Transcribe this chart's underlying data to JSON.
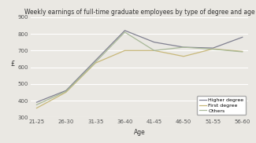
{
  "title": "Weekly earnings of full-time graduate employees by type of degree and age",
  "xlabel": "Age",
  "ylabel": "£",
  "age_groups": [
    "21-25",
    "26-30",
    "31-35",
    "36-40",
    "41-45",
    "46-50",
    "51-55",
    "56-60"
  ],
  "higher_degree": [
    390,
    460,
    640,
    820,
    750,
    720,
    715,
    780
  ],
  "first_degree": [
    355,
    450,
    625,
    700,
    700,
    665,
    710,
    695
  ],
  "others": [
    375,
    455,
    630,
    810,
    700,
    720,
    708,
    692
  ],
  "higher_color": "#808090",
  "first_color": "#c8b87a",
  "others_color": "#a8b898",
  "ylim": [
    300,
    900
  ],
  "yticks": [
    300,
    400,
    500,
    600,
    700,
    800,
    900
  ],
  "legend_labels": [
    "Higher degree",
    "First degree",
    "Others"
  ],
  "bg_color": "#eae8e3"
}
